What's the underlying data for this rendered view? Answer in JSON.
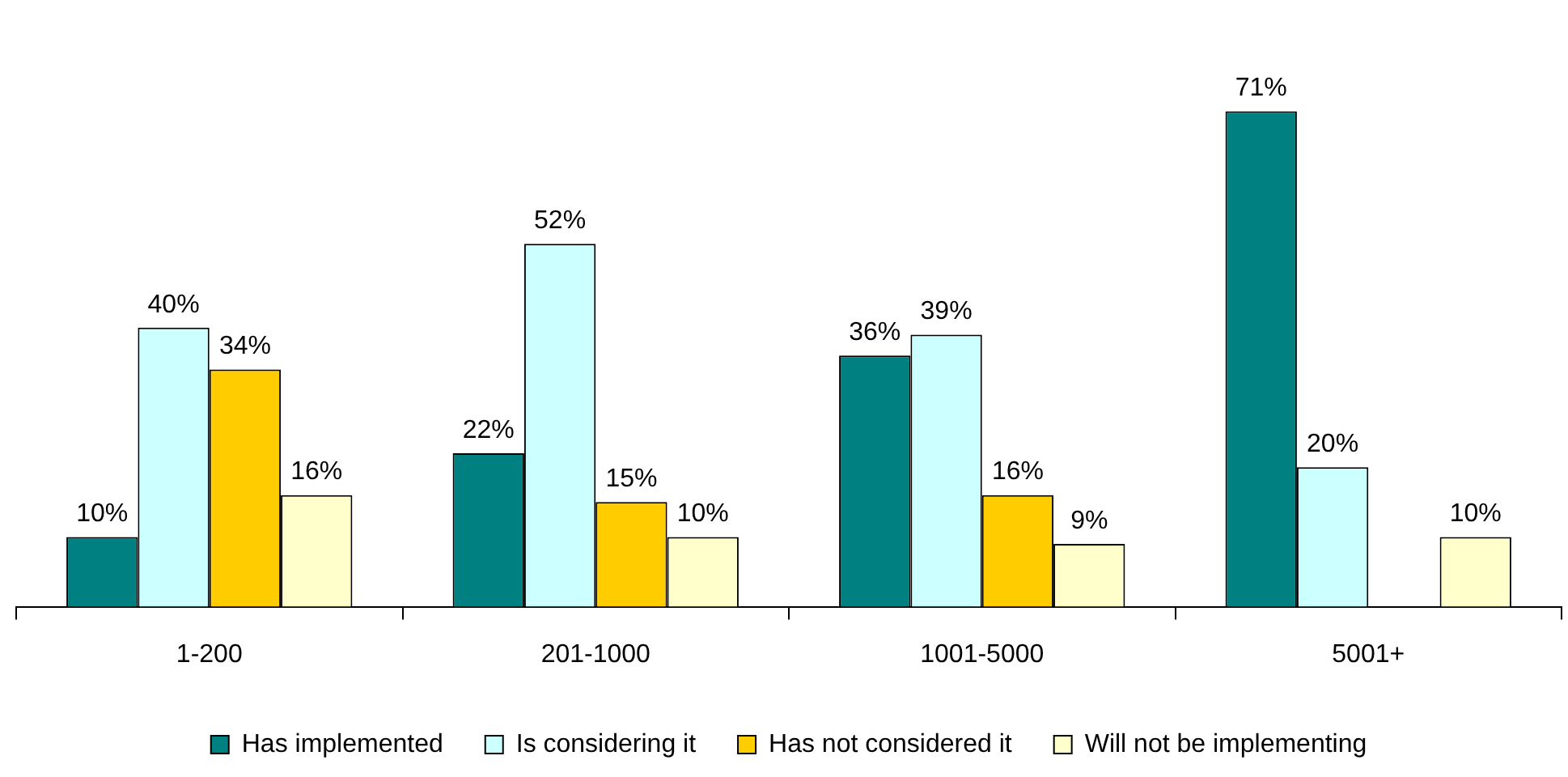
{
  "chart_data": {
    "type": "bar",
    "categories": [
      "1-200",
      "201-1000",
      "1001-5000",
      "5001+"
    ],
    "series": [
      {
        "name": "Has implemented",
        "color": "#008080",
        "values": [
          10,
          22,
          36,
          71
        ],
        "value_labels": [
          "10%",
          "22%",
          "36%",
          "71%"
        ]
      },
      {
        "name": "Is considering it",
        "color": "#ccffff",
        "values": [
          40,
          52,
          39,
          20
        ],
        "value_labels": [
          "40%",
          "52%",
          "39%",
          "20%"
        ]
      },
      {
        "name": "Has not considered it",
        "color": "#ffcc00",
        "values": [
          34,
          15,
          16,
          null
        ],
        "value_labels": [
          "34%",
          "15%",
          "16%",
          null
        ]
      },
      {
        "name": "Will not be implementing",
        "color": "#ffffcc",
        "values": [
          16,
          10,
          9,
          10
        ],
        "value_labels": [
          "16%",
          "10%",
          "9%",
          "10%"
        ]
      }
    ],
    "grid": false,
    "legend": "bottom"
  }
}
